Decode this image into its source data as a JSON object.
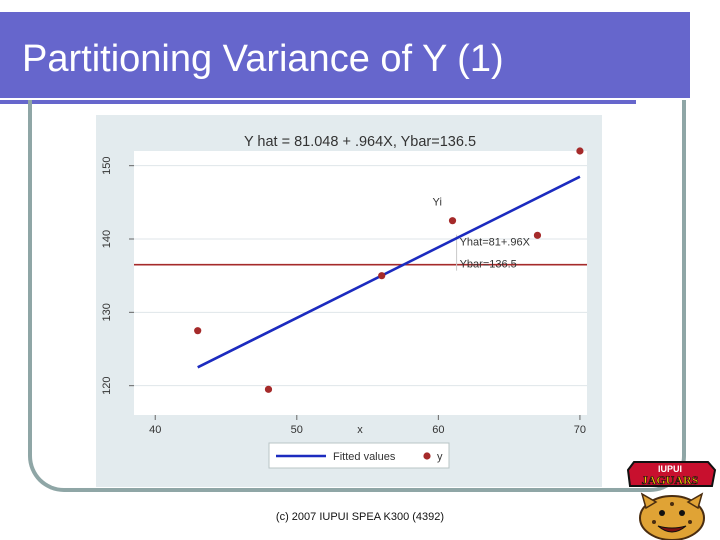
{
  "slide": {
    "title": "Partitioning Variance of Y (1)",
    "footer": "(c) 2007 IUPUI SPEA K300 (4392)"
  },
  "logo": {
    "word1": "IUPUI",
    "word2": "JAGUARS"
  },
  "colors": {
    "title_bar": "#6666cc",
    "fit_line": "#1c2bbf",
    "mean_line": "#a52a2a",
    "points": "#a52a2a",
    "chart_bg": "#e3ebee"
  },
  "chart_data": {
    "type": "scatter",
    "title": "Y hat = 81.048 + .964X, Ybar=136.5",
    "xlabel": "x",
    "ylabel": "",
    "xlim": [
      38.5,
      70.5
    ],
    "ylim": [
      116,
      152
    ],
    "xticks": [
      40,
      50,
      60,
      70
    ],
    "yticks": [
      120,
      130,
      140,
      150
    ],
    "grid": true,
    "series": [
      {
        "name": "Fitted values",
        "type": "line",
        "x": [
          43,
          70
        ],
        "y": [
          122.5,
          148.5
        ]
      },
      {
        "name": "y",
        "type": "scatter",
        "points": [
          {
            "x": 43,
            "y": 127.5
          },
          {
            "x": 48,
            "y": 119.5
          },
          {
            "x": 56,
            "y": 135
          },
          {
            "x": 61,
            "y": 142.5
          },
          {
            "x": 67,
            "y": 140.5
          },
          {
            "x": 70,
            "y": 152
          }
        ]
      }
    ],
    "reference_line": {
      "name": "Ybar",
      "y": 136.5
    },
    "annotations": [
      {
        "text": "Yi",
        "x": 61,
        "y": 145
      },
      {
        "text": "Yhat=81+.96X",
        "x": 61.5,
        "y": 139.5
      },
      {
        "text": "Ybar=136.5",
        "x": 61.5,
        "y": 136.5
      }
    ],
    "legend": {
      "placement": "bottom",
      "items": [
        "Fitted values",
        "y"
      ]
    }
  }
}
